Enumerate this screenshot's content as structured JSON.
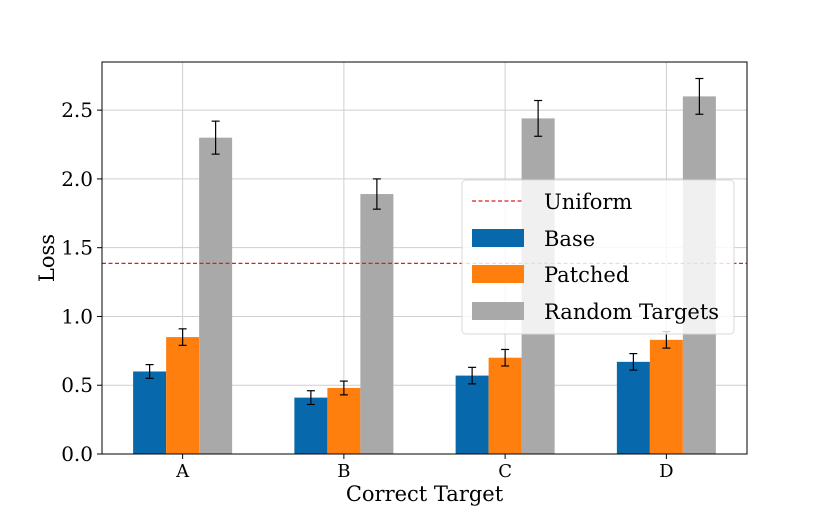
{
  "chart_data": {
    "type": "bar",
    "title": "",
    "xlabel": "Correct Target",
    "ylabel": "Loss",
    "categories": [
      "A",
      "B",
      "C",
      "D"
    ],
    "ylim": [
      0,
      2.85
    ],
    "yticks": [
      "0.0",
      "0.5",
      "1.0",
      "1.5",
      "2.0",
      "2.5"
    ],
    "grid": true,
    "legend_position": "center-right",
    "series": [
      {
        "name": "Base",
        "color": "#0868ac",
        "values": [
          0.6,
          0.41,
          0.57,
          0.67
        ],
        "errors": [
          0.05,
          0.05,
          0.06,
          0.06
        ]
      },
      {
        "name": "Patched",
        "color": "#ff7f0e",
        "values": [
          0.85,
          0.48,
          0.7,
          0.83
        ],
        "errors": [
          0.06,
          0.05,
          0.06,
          0.06
        ]
      },
      {
        "name": "Random Targets",
        "color": "#a9a9a9",
        "values": [
          2.3,
          1.89,
          2.44,
          2.6
        ],
        "errors": [
          0.12,
          0.11,
          0.13,
          0.13
        ]
      }
    ],
    "reference_line": {
      "name": "Uniform",
      "value": 1.386,
      "color": "#e41a1c",
      "style": "dashed"
    }
  }
}
